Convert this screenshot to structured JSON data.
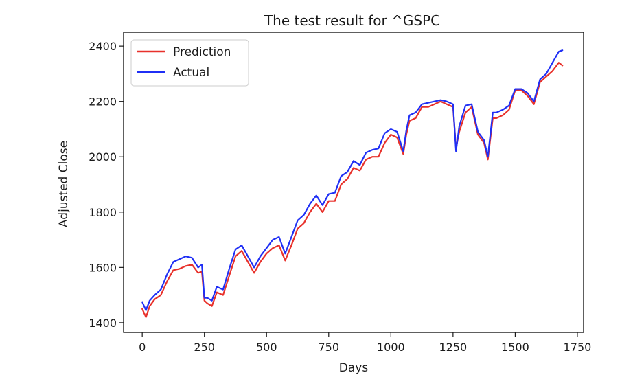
{
  "chart_data": {
    "type": "line",
    "title": "The test result for ^GSPC",
    "xlabel": "Days",
    "ylabel": "Adjusted Close",
    "xlim": [
      -75,
      1775
    ],
    "ylim": [
      1365,
      2450
    ],
    "xticks": [
      0,
      250,
      500,
      750,
      1000,
      1250,
      1500,
      1750
    ],
    "yticks": [
      1400,
      1600,
      1800,
      2000,
      2200,
      2400
    ],
    "grid": false,
    "legend_position": "upper-left",
    "series": [
      {
        "name": "Prediction",
        "color": "#e8312b",
        "x": [
          0,
          15,
          30,
          50,
          75,
          100,
          125,
          150,
          175,
          200,
          225,
          240,
          250,
          262,
          280,
          300,
          325,
          350,
          375,
          400,
          425,
          450,
          475,
          500,
          525,
          550,
          575,
          600,
          625,
          650,
          675,
          700,
          725,
          750,
          775,
          800,
          825,
          850,
          875,
          900,
          925,
          950,
          975,
          1000,
          1025,
          1050,
          1062,
          1075,
          1100,
          1125,
          1150,
          1175,
          1200,
          1225,
          1250,
          1262,
          1275,
          1300,
          1325,
          1350,
          1375,
          1390,
          1410,
          1425,
          1450,
          1475,
          1500,
          1525,
          1550,
          1575,
          1600,
          1625,
          1650,
          1675,
          1690
        ],
        "values": [
          1450,
          1420,
          1460,
          1485,
          1500,
          1550,
          1590,
          1595,
          1605,
          1610,
          1580,
          1585,
          1480,
          1470,
          1460,
          1510,
          1500,
          1570,
          1640,
          1660,
          1620,
          1580,
          1620,
          1650,
          1670,
          1680,
          1625,
          1680,
          1740,
          1760,
          1800,
          1830,
          1800,
          1840,
          1840,
          1900,
          1920,
          1960,
          1950,
          1990,
          2000,
          2000,
          2050,
          2080,
          2070,
          2010,
          2080,
          2130,
          2140,
          2180,
          2180,
          2190,
          2200,
          2190,
          2180,
          2030,
          2090,
          2160,
          2180,
          2080,
          2050,
          1990,
          2140,
          2140,
          2150,
          2170,
          2240,
          2240,
          2220,
          2190,
          2270,
          2290,
          2310,
          2340,
          2330
        ]
      },
      {
        "name": "Actual",
        "color": "#1f2ff5",
        "x": [
          0,
          15,
          30,
          50,
          75,
          100,
          125,
          150,
          175,
          200,
          225,
          240,
          250,
          262,
          280,
          300,
          325,
          350,
          375,
          400,
          425,
          450,
          475,
          500,
          525,
          550,
          575,
          600,
          625,
          650,
          675,
          700,
          725,
          750,
          775,
          800,
          825,
          850,
          875,
          900,
          925,
          950,
          975,
          1000,
          1025,
          1050,
          1062,
          1075,
          1100,
          1125,
          1150,
          1175,
          1200,
          1225,
          1250,
          1262,
          1275,
          1300,
          1325,
          1350,
          1375,
          1390,
          1410,
          1425,
          1450,
          1475,
          1500,
          1525,
          1550,
          1575,
          1600,
          1625,
          1650,
          1675,
          1690
        ],
        "values": [
          1475,
          1445,
          1480,
          1500,
          1520,
          1575,
          1620,
          1630,
          1640,
          1635,
          1600,
          1610,
          1490,
          1490,
          1480,
          1530,
          1520,
          1595,
          1665,
          1680,
          1640,
          1600,
          1640,
          1670,
          1700,
          1710,
          1650,
          1710,
          1770,
          1790,
          1830,
          1860,
          1825,
          1865,
          1870,
          1930,
          1945,
          1985,
          1970,
          2015,
          2025,
          2030,
          2085,
          2100,
          2090,
          2020,
          2095,
          2150,
          2160,
          2190,
          2195,
          2200,
          2205,
          2200,
          2190,
          2020,
          2110,
          2185,
          2190,
          2090,
          2060,
          2000,
          2160,
          2160,
          2170,
          2185,
          2245,
          2245,
          2230,
          2200,
          2280,
          2300,
          2340,
          2380,
          2385
        ]
      }
    ]
  }
}
